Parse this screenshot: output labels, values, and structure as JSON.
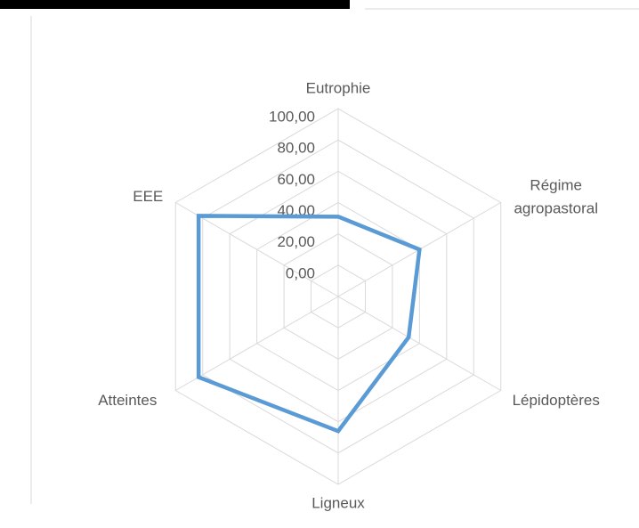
{
  "chart_data": {
    "type": "radar",
    "categories": [
      "Eutrophie",
      "Régime agropastoral",
      "Lépidoptères",
      "Ligneux",
      "Atteintes",
      "EEE"
    ],
    "series": [
      {
        "color": "#5b9bd5",
        "values": [
          31,
          40,
          32,
          66,
          83,
          83
        ]
      }
    ],
    "ylim": [
      -20,
      100
    ],
    "yticks": [
      {
        "value": 0,
        "label": "0,00"
      },
      {
        "value": 20,
        "label": "20,00"
      },
      {
        "value": 40,
        "label": "40,00"
      },
      {
        "value": 60,
        "label": "60,00"
      },
      {
        "value": 80,
        "label": "80,00"
      },
      {
        "value": 100,
        "label": "100,00"
      }
    ],
    "grid": true
  }
}
